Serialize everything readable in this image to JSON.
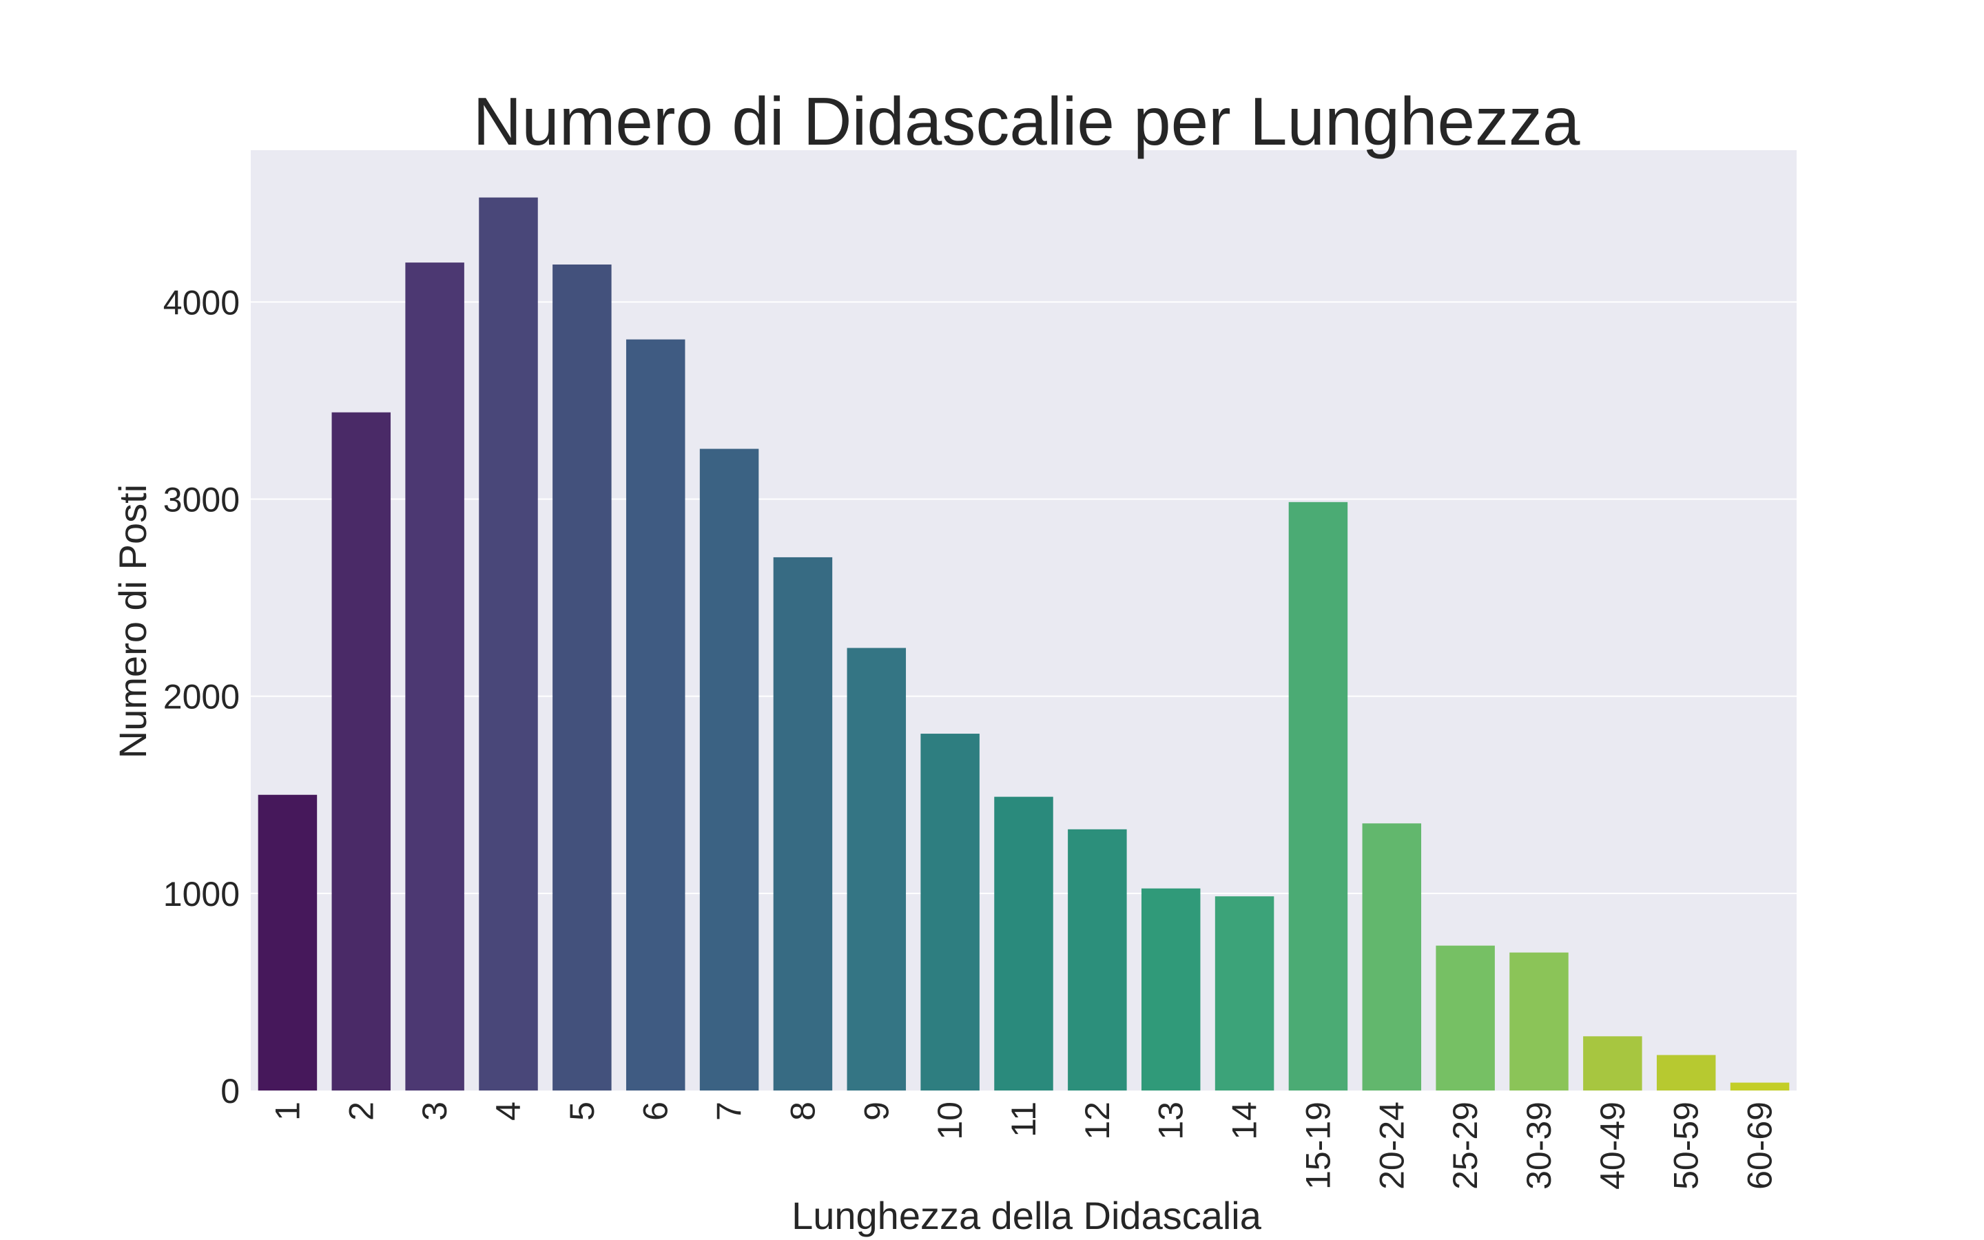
{
  "chart_data": {
    "type": "bar",
    "title": "Numero di Didascalie per Lunghezza",
    "xlabel": "Lunghezza della Didascalia",
    "ylabel": "Numero di Posti",
    "categories": [
      "1",
      "2",
      "3",
      "4",
      "5",
      "6",
      "7",
      "8",
      "9",
      "10",
      "11",
      "12",
      "13",
      "14",
      "15-19",
      "20-24",
      "25-29",
      "30-39",
      "40-49",
      "50-59",
      "60-69"
    ],
    "values": [
      1500,
      3440,
      4200,
      4530,
      4190,
      3810,
      3255,
      2705,
      2245,
      1810,
      1490,
      1325,
      1025,
      985,
      2985,
      1355,
      735,
      700,
      275,
      180,
      40
    ],
    "ylim": [
      0,
      4770
    ],
    "yticks": [
      "0",
      "1000",
      "2000",
      "3000",
      "4000"
    ],
    "grid": true,
    "colors": [
      "#46185b",
      "#4a2a67",
      "#4c3872",
      "#494779",
      "#43517c",
      "#3f5b82",
      "#3b6283",
      "#376b83",
      "#347584",
      "#2e7e80",
      "#2a8a7c",
      "#2c8f7b",
      "#309a79",
      "#3ca379",
      "#4bab74",
      "#62b76d",
      "#76c064",
      "#8bc458",
      "#a7c640",
      "#b7c930",
      "#c3ce29"
    ],
    "background": "#eaeaf2"
  }
}
